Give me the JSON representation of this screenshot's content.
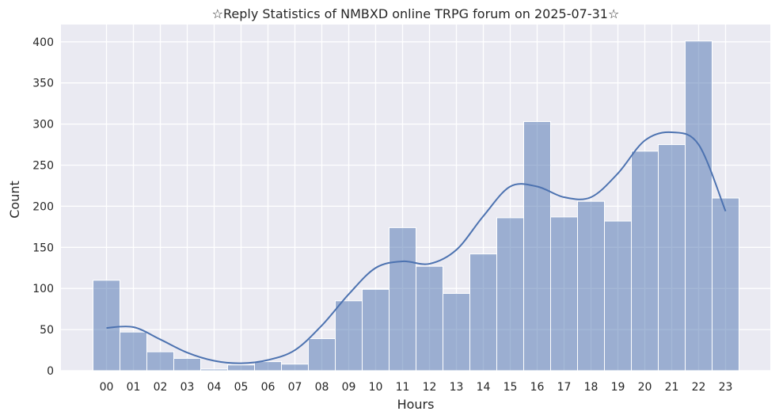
{
  "chart_data": {
    "type": "bar",
    "title": "☆Reply Statistics of NMBXD online TRPG forum on 2025-07-31☆",
    "xlabel": "Hours",
    "ylabel": "Count",
    "categories": [
      "00",
      "01",
      "02",
      "03",
      "04",
      "05",
      "06",
      "07",
      "08",
      "09",
      "10",
      "11",
      "12",
      "13",
      "14",
      "15",
      "16",
      "17",
      "18",
      "19",
      "20",
      "21",
      "22",
      "23"
    ],
    "values": [
      110,
      47,
      23,
      15,
      2,
      7,
      11,
      8,
      39,
      85,
      99,
      174,
      127,
      94,
      142,
      186,
      303,
      187,
      206,
      182,
      267,
      275,
      401,
      210
    ],
    "kde_values": [
      52,
      53,
      38,
      22,
      12,
      9,
      13,
      25,
      55,
      93,
      125,
      133,
      130,
      147,
      188,
      224,
      224,
      211,
      211,
      240,
      280,
      290,
      275,
      194
    ],
    "yticks": [
      0,
      50,
      100,
      150,
      200,
      250,
      300,
      350,
      400
    ],
    "ylim": [
      0,
      421
    ],
    "grid": true,
    "colors": {
      "background": "#EAEAF2",
      "bar_fill": "#4C72B0",
      "bar_fill_opacity": 0.5,
      "line": "#4C72B0",
      "grid": "#FFFFFF",
      "text": "#262626"
    }
  }
}
